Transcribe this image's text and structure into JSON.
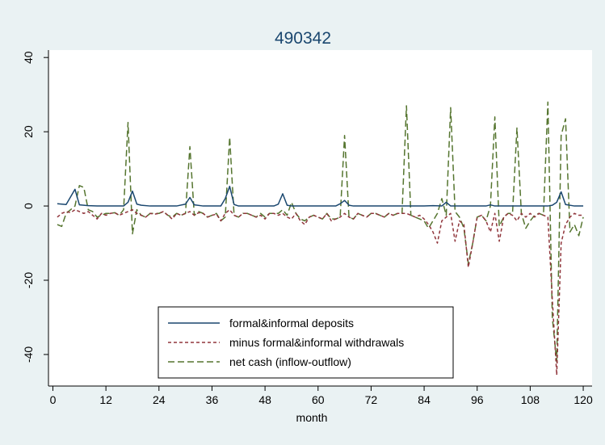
{
  "chart_data": {
    "type": "line",
    "title": "490342",
    "xlabel": "month",
    "ylabel": "",
    "xlim": [
      -1,
      122
    ],
    "ylim": [
      -48.5,
      42
    ],
    "xticks": [
      0,
      12,
      24,
      36,
      48,
      60,
      72,
      84,
      96,
      108,
      120
    ],
    "yticks": [
      -40,
      -20,
      0,
      20,
      40
    ],
    "grid": false,
    "legend_position": "bottom-center",
    "background_color": "#eaf2f3",
    "plot_background_color": "#ffffff",
    "series": [
      {
        "name": "formal&informal deposits",
        "color": "#1a476f",
        "dash": "solid",
        "points": [
          [
            1,
            0.6
          ],
          [
            3,
            0.4
          ],
          [
            5,
            4.5
          ],
          [
            6,
            0.3
          ],
          [
            8,
            0.1
          ],
          [
            10,
            0
          ],
          [
            12,
            0
          ],
          [
            14,
            0
          ],
          [
            16,
            0
          ],
          [
            17,
            1
          ],
          [
            18,
            4
          ],
          [
            19,
            0.5
          ],
          [
            20,
            0.2
          ],
          [
            22,
            0
          ],
          [
            24,
            0
          ],
          [
            26,
            0
          ],
          [
            28,
            0
          ],
          [
            30,
            0.5
          ],
          [
            31,
            2.3
          ],
          [
            32,
            0.3
          ],
          [
            34,
            0
          ],
          [
            36,
            0
          ],
          [
            38,
            0
          ],
          [
            39,
            2
          ],
          [
            40,
            5.3
          ],
          [
            41,
            0.4
          ],
          [
            42,
            0
          ],
          [
            44,
            0
          ],
          [
            46,
            0
          ],
          [
            48,
            0
          ],
          [
            50,
            0
          ],
          [
            51,
            0.5
          ],
          [
            52,
            3.3
          ],
          [
            53,
            0.2
          ],
          [
            54,
            0
          ],
          [
            56,
            0
          ],
          [
            58,
            0
          ],
          [
            60,
            0
          ],
          [
            62,
            0
          ],
          [
            64,
            0
          ],
          [
            65,
            0.6
          ],
          [
            66,
            1.5
          ],
          [
            67,
            0.2
          ],
          [
            68,
            0
          ],
          [
            70,
            0
          ],
          [
            72,
            0
          ],
          [
            74,
            0
          ],
          [
            76,
            0
          ],
          [
            78,
            0
          ],
          [
            80,
            0
          ],
          [
            82,
            0
          ],
          [
            84,
            0
          ],
          [
            86,
            0.1
          ],
          [
            88,
            0
          ],
          [
            89,
            1
          ],
          [
            90,
            0
          ],
          [
            92,
            0
          ],
          [
            94,
            0
          ],
          [
            96,
            0
          ],
          [
            98,
            0
          ],
          [
            99,
            0.3
          ],
          [
            100,
            0
          ],
          [
            102,
            0
          ],
          [
            104,
            0
          ],
          [
            106,
            0
          ],
          [
            108,
            0
          ],
          [
            110,
            0
          ],
          [
            112,
            0
          ],
          [
            113,
            0.2
          ],
          [
            114,
            1
          ],
          [
            115,
            3.8
          ],
          [
            116,
            0.4
          ],
          [
            118,
            0
          ],
          [
            120,
            0
          ]
        ]
      },
      {
        "name": "minus formal&informal withdrawals",
        "color": "#90353b",
        "dash": "short-dash",
        "points": [
          [
            1,
            -3
          ],
          [
            2,
            -2
          ],
          [
            3,
            -1.5
          ],
          [
            4,
            -1.8
          ],
          [
            5,
            -1
          ],
          [
            6,
            -1.5
          ],
          [
            7,
            -2
          ],
          [
            8,
            -1.5
          ],
          [
            9,
            -2.5
          ],
          [
            10,
            -3.5
          ],
          [
            11,
            -2
          ],
          [
            12,
            -2.5
          ],
          [
            13,
            -2
          ],
          [
            14,
            -1.8
          ],
          [
            15,
            -2.5
          ],
          [
            16,
            -2
          ],
          [
            17,
            -1.5
          ],
          [
            18,
            -1
          ],
          [
            19,
            -2
          ],
          [
            20,
            -2.5
          ],
          [
            21,
            -3
          ],
          [
            22,
            -2
          ],
          [
            23,
            -2.2
          ],
          [
            24,
            -2
          ],
          [
            25,
            -1.5
          ],
          [
            26,
            -2.5
          ],
          [
            27,
            -3.5
          ],
          [
            28,
            -2
          ],
          [
            29,
            -2.5
          ],
          [
            30,
            -2
          ],
          [
            31,
            -1.5
          ],
          [
            32,
            -2.5
          ],
          [
            33,
            -1.8
          ],
          [
            34,
            -2
          ],
          [
            35,
            -3
          ],
          [
            36,
            -2.5
          ],
          [
            37,
            -2.2
          ],
          [
            38,
            -4
          ],
          [
            39,
            -2
          ],
          [
            40,
            -1
          ],
          [
            41,
            -2.5
          ],
          [
            42,
            -3
          ],
          [
            43,
            -2
          ],
          [
            44,
            -2
          ],
          [
            45,
            -2.5
          ],
          [
            46,
            -3
          ],
          [
            47,
            -2.5
          ],
          [
            48,
            -3.5
          ],
          [
            49,
            -2
          ],
          [
            50,
            -2
          ],
          [
            51,
            -2.5
          ],
          [
            52,
            -2
          ],
          [
            53,
            -3
          ],
          [
            54,
            -3.5
          ],
          [
            55,
            -2
          ],
          [
            56,
            -4
          ],
          [
            57,
            -5
          ],
          [
            58,
            -3
          ],
          [
            59,
            -2.5
          ],
          [
            60,
            -3
          ],
          [
            61,
            -3.5
          ],
          [
            62,
            -2
          ],
          [
            63,
            -4
          ],
          [
            64,
            -3.5
          ],
          [
            65,
            -3
          ],
          [
            66,
            -2
          ],
          [
            67,
            -3
          ],
          [
            68,
            -3.5
          ],
          [
            69,
            -2
          ],
          [
            70,
            -2.5
          ],
          [
            71,
            -3
          ],
          [
            72,
            -2
          ],
          [
            73,
            -2
          ],
          [
            74,
            -2.5
          ],
          [
            75,
            -3
          ],
          [
            76,
            -2
          ],
          [
            77,
            -2.5
          ],
          [
            78,
            -2
          ],
          [
            79,
            -2
          ],
          [
            80,
            -2
          ],
          [
            81,
            -2.5
          ],
          [
            82,
            -3
          ],
          [
            83,
            -2.5
          ],
          [
            84,
            -3.5
          ],
          [
            85,
            -5
          ],
          [
            86,
            -7
          ],
          [
            87,
            -10
          ],
          [
            88,
            -4
          ],
          [
            89,
            -3
          ],
          [
            90,
            -2
          ],
          [
            91,
            -9.5
          ],
          [
            92,
            -4
          ],
          [
            93,
            -5
          ],
          [
            94,
            -16.5
          ],
          [
            95,
            -10
          ],
          [
            96,
            -3
          ],
          [
            97,
            -2.5
          ],
          [
            98,
            -4
          ],
          [
            99,
            -7
          ],
          [
            100,
            -2
          ],
          [
            101,
            -9.5
          ],
          [
            102,
            -3
          ],
          [
            103,
            -2
          ],
          [
            104,
            -2.5
          ],
          [
            105,
            -4
          ],
          [
            106,
            -2
          ],
          [
            107,
            -3
          ],
          [
            108,
            -2
          ],
          [
            109,
            -3
          ],
          [
            110,
            -2
          ],
          [
            111,
            -2.5
          ],
          [
            112,
            -3
          ],
          [
            113,
            -25
          ],
          [
            114,
            -45.5
          ],
          [
            115,
            -10
          ],
          [
            116,
            -5
          ],
          [
            117,
            -3
          ],
          [
            118,
            -2
          ],
          [
            119,
            -2.5
          ],
          [
            120,
            -2.5
          ]
        ]
      },
      {
        "name": "net cash (inflow-outflow)",
        "color": "#55752f",
        "dash": "long-dash",
        "points": [
          [
            1,
            -5
          ],
          [
            2,
            -5.5
          ],
          [
            3,
            -2
          ],
          [
            4,
            -1
          ],
          [
            5,
            0
          ],
          [
            6,
            5.5
          ],
          [
            7,
            5
          ],
          [
            8,
            -1
          ],
          [
            9,
            -1.5
          ],
          [
            10,
            -3
          ],
          [
            11,
            -2.5
          ],
          [
            12,
            -2
          ],
          [
            13,
            -2
          ],
          [
            14,
            -1.8
          ],
          [
            15,
            -2.5
          ],
          [
            16,
            -1
          ],
          [
            17,
            22.5
          ],
          [
            18,
            -7.5
          ],
          [
            19,
            -1
          ],
          [
            20,
            -2.5
          ],
          [
            21,
            -3
          ],
          [
            22,
            -2
          ],
          [
            23,
            -2
          ],
          [
            24,
            -2
          ],
          [
            25,
            -1.5
          ],
          [
            26,
            -2.5
          ],
          [
            27,
            -3
          ],
          [
            28,
            -2
          ],
          [
            29,
            -2.5
          ],
          [
            30,
            -2
          ],
          [
            31,
            16
          ],
          [
            32,
            -2.5
          ],
          [
            33,
            -1.5
          ],
          [
            34,
            -2
          ],
          [
            35,
            -3
          ],
          [
            36,
            -2.5
          ],
          [
            37,
            -2
          ],
          [
            38,
            -4
          ],
          [
            39,
            -3
          ],
          [
            40,
            18.5
          ],
          [
            41,
            -2.5
          ],
          [
            42,
            -3
          ],
          [
            43,
            -2
          ],
          [
            44,
            -2
          ],
          [
            45,
            -2.5
          ],
          [
            46,
            -3
          ],
          [
            47,
            -2
          ],
          [
            48,
            -3
          ],
          [
            49,
            -2
          ],
          [
            50,
            -2
          ],
          [
            51,
            -2
          ],
          [
            52,
            -1
          ],
          [
            53,
            -2.5
          ],
          [
            54,
            1
          ],
          [
            55,
            -2
          ],
          [
            56,
            -3.5
          ],
          [
            57,
            -4
          ],
          [
            58,
            -3
          ],
          [
            59,
            -2.5
          ],
          [
            60,
            -3
          ],
          [
            61,
            -3.5
          ],
          [
            62,
            -2
          ],
          [
            63,
            -3.5
          ],
          [
            64,
            -3.5
          ],
          [
            65,
            -3
          ],
          [
            66,
            19
          ],
          [
            67,
            -3
          ],
          [
            68,
            -3.5
          ],
          [
            69,
            -2
          ],
          [
            70,
            -2.5
          ],
          [
            71,
            -3
          ],
          [
            72,
            -2
          ],
          [
            73,
            -2
          ],
          [
            74,
            -2.5
          ],
          [
            75,
            -3
          ],
          [
            76,
            -2
          ],
          [
            77,
            -2.5
          ],
          [
            78,
            -2
          ],
          [
            79,
            -2
          ],
          [
            80,
            27
          ],
          [
            81,
            -2.5
          ],
          [
            82,
            -3
          ],
          [
            83,
            -3.5
          ],
          [
            84,
            -4
          ],
          [
            85,
            -6
          ],
          [
            86,
            -4
          ],
          [
            87,
            -2
          ],
          [
            88,
            2
          ],
          [
            89,
            -2.5
          ],
          [
            90,
            26.5
          ],
          [
            91,
            -1.5
          ],
          [
            92,
            -3
          ],
          [
            93,
            -6
          ],
          [
            94,
            -15.5
          ],
          [
            95,
            -10
          ],
          [
            96,
            -3
          ],
          [
            97,
            -2.5
          ],
          [
            98,
            -4
          ],
          [
            99,
            0
          ],
          [
            100,
            24
          ],
          [
            101,
            -5.5
          ],
          [
            102,
            -3
          ],
          [
            103,
            -2
          ],
          [
            104,
            -2
          ],
          [
            105,
            21
          ],
          [
            106,
            -2
          ],
          [
            107,
            -6
          ],
          [
            108,
            -4
          ],
          [
            109,
            -2.5
          ],
          [
            110,
            -2
          ],
          [
            111,
            -2.5
          ],
          [
            112,
            28
          ],
          [
            113,
            -30
          ],
          [
            114,
            -42
          ],
          [
            115,
            19
          ],
          [
            116,
            23.5
          ],
          [
            117,
            -7
          ],
          [
            118,
            -5
          ],
          [
            119,
            -8
          ],
          [
            120,
            -3
          ]
        ]
      }
    ]
  }
}
